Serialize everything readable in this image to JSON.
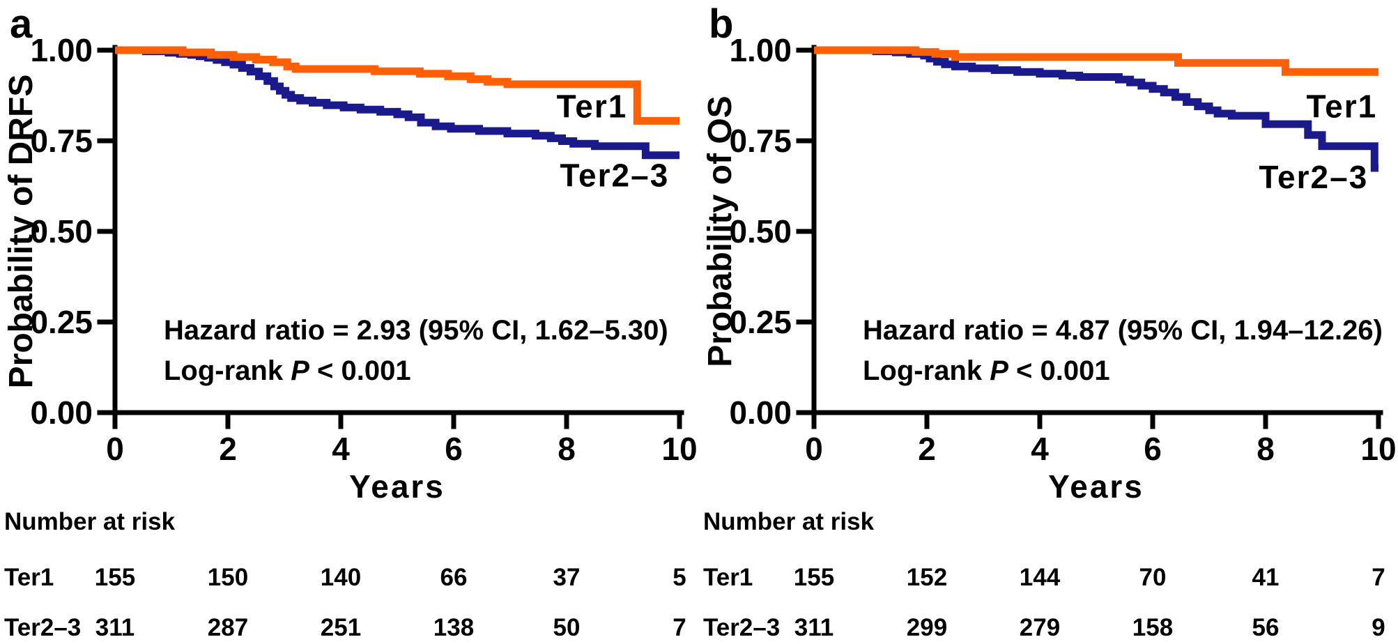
{
  "chart_data": [
    {
      "type": "line",
      "subtype": "kaplan-meier-step",
      "panel": "a",
      "ylabel": "Probability of DRFS",
      "xlabel": "Years",
      "xlim": [
        0,
        10
      ],
      "ylim": [
        0,
        1
      ],
      "xticks": [
        0,
        2,
        4,
        6,
        8,
        10
      ],
      "ytick_labels": [
        "1.00",
        "0.75",
        "0.50",
        "0.25",
        "0.00"
      ],
      "hazard_text": "Hazard ratio = 2.93 (95% CI, 1.62–5.30)",
      "logrank": {
        "prefix": "Log-rank ",
        "italic": "P",
        "suffix": " < 0.001"
      },
      "legend_position": "on-curve",
      "grid": false,
      "series": [
        {
          "name": "Ter1",
          "color": "#FF5F05",
          "label_x": 8.45,
          "label_y": 0.845,
          "steps": [
            [
              0,
              1.0
            ],
            [
              1.2,
              0.994
            ],
            [
              1.7,
              0.987
            ],
            [
              2.1,
              0.981
            ],
            [
              2.5,
              0.974
            ],
            [
              2.8,
              0.967
            ],
            [
              3.05,
              0.955
            ],
            [
              3.2,
              0.948
            ],
            [
              4.6,
              0.942
            ],
            [
              5.4,
              0.935
            ],
            [
              5.9,
              0.928
            ],
            [
              6.3,
              0.92
            ],
            [
              6.6,
              0.913
            ],
            [
              6.95,
              0.906
            ],
            [
              9.25,
              0.805
            ]
          ]
        },
        {
          "name": "Ter2–3",
          "color": "#1A1A8C",
          "label_x": 8.85,
          "label_y": 0.655,
          "steps": [
            [
              0,
              1.0
            ],
            [
              0.55,
              0.997
            ],
            [
              0.95,
              0.993
            ],
            [
              1.15,
              0.99
            ],
            [
              1.35,
              0.987
            ],
            [
              1.5,
              0.983
            ],
            [
              1.65,
              0.979
            ],
            [
              1.8,
              0.973
            ],
            [
              1.95,
              0.967
            ],
            [
              2.1,
              0.96
            ],
            [
              2.25,
              0.951
            ],
            [
              2.4,
              0.941
            ],
            [
              2.55,
              0.928
            ],
            [
              2.7,
              0.915
            ],
            [
              2.82,
              0.9
            ],
            [
              2.92,
              0.888
            ],
            [
              3.02,
              0.877
            ],
            [
              3.12,
              0.868
            ],
            [
              3.28,
              0.861
            ],
            [
              3.5,
              0.855
            ],
            [
              3.75,
              0.848
            ],
            [
              4.05,
              0.842
            ],
            [
              4.35,
              0.836
            ],
            [
              4.7,
              0.83
            ],
            [
              5.0,
              0.823
            ],
            [
              5.2,
              0.815
            ],
            [
              5.42,
              0.8
            ],
            [
              5.68,
              0.79
            ],
            [
              5.95,
              0.783
            ],
            [
              6.45,
              0.777
            ],
            [
              6.95,
              0.77
            ],
            [
              7.45,
              0.764
            ],
            [
              7.72,
              0.757
            ],
            [
              7.92,
              0.749
            ],
            [
              8.12,
              0.742
            ],
            [
              8.5,
              0.735
            ],
            [
              9.4,
              0.71
            ]
          ]
        }
      ],
      "risk_table": {
        "header": "Number at risk",
        "columns_years": [
          0,
          2,
          4,
          6,
          8,
          10
        ],
        "rows": [
          {
            "label": "Ter1",
            "values": [
              155,
              150,
              140,
              66,
              37,
              5
            ]
          },
          {
            "label": "Ter2–3",
            "values": [
              311,
              287,
              251,
              138,
              50,
              7
            ]
          }
        ]
      }
    },
    {
      "type": "line",
      "subtype": "kaplan-meier-step",
      "panel": "b",
      "ylabel": "Probability of OS",
      "xlabel": "Years",
      "xlim": [
        0,
        10
      ],
      "ylim": [
        0,
        1
      ],
      "xticks": [
        0,
        2,
        4,
        6,
        8,
        10
      ],
      "ytick_labels": [
        "1.00",
        "0.75",
        "0.50",
        "0.25",
        "0.00"
      ],
      "hazard_text": "Hazard ratio = 4.87 (95% CI, 1.94–12.26)",
      "logrank": {
        "prefix": "Log-rank ",
        "italic": "P",
        "suffix": " < 0.001"
      },
      "legend_position": "on-curve",
      "grid": false,
      "series": [
        {
          "name": "Ter1",
          "color": "#FF5F05",
          "label_x": 9.35,
          "label_y": 0.845,
          "steps": [
            [
              0,
              1.0
            ],
            [
              1.8,
              0.995
            ],
            [
              2.15,
              0.99
            ],
            [
              2.5,
              0.981
            ],
            [
              6.45,
              0.965
            ],
            [
              8.35,
              0.94
            ]
          ]
        },
        {
          "name": "Ter2–3",
          "color": "#1A1A8C",
          "label_x": 8.85,
          "label_y": 0.65,
          "steps": [
            [
              0,
              1.0
            ],
            [
              1.1,
              0.997
            ],
            [
              1.45,
              0.994
            ],
            [
              1.7,
              0.99
            ],
            [
              1.95,
              0.985
            ],
            [
              2.05,
              0.977
            ],
            [
              2.18,
              0.968
            ],
            [
              2.32,
              0.961
            ],
            [
              2.5,
              0.955
            ],
            [
              2.8,
              0.95
            ],
            [
              3.2,
              0.945
            ],
            [
              3.6,
              0.94
            ],
            [
              4.0,
              0.935
            ],
            [
              4.4,
              0.93
            ],
            [
              4.7,
              0.926
            ],
            [
              5.4,
              0.919
            ],
            [
              5.6,
              0.911
            ],
            [
              5.8,
              0.902
            ],
            [
              6.0,
              0.893
            ],
            [
              6.2,
              0.883
            ],
            [
              6.4,
              0.871
            ],
            [
              6.6,
              0.857
            ],
            [
              6.8,
              0.845
            ],
            [
              7.0,
              0.834
            ],
            [
              7.15,
              0.825
            ],
            [
              7.4,
              0.819
            ],
            [
              8.0,
              0.796
            ],
            [
              8.75,
              0.766
            ],
            [
              9.0,
              0.735
            ],
            [
              9.93,
              0.675
            ]
          ]
        }
      ],
      "risk_table": {
        "header": "Number at risk",
        "columns_years": [
          0,
          2,
          4,
          6,
          8,
          10
        ],
        "rows": [
          {
            "label": "Ter1",
            "values": [
              155,
              152,
              144,
              70,
              41,
              7
            ]
          },
          {
            "label": "Ter2–3",
            "values": [
              311,
              299,
              279,
              158,
              56,
              9
            ]
          }
        ]
      }
    }
  ]
}
